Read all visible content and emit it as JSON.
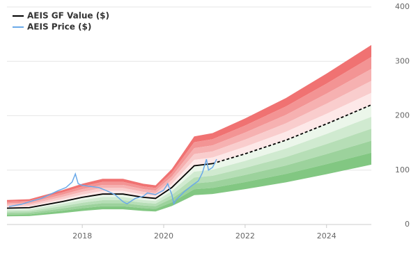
{
  "chart_data": {
    "type": "gf-value",
    "xlim": [
      2016.15,
      2025.1
    ],
    "xticks": [
      2018,
      2020,
      2022,
      2024
    ],
    "ylim": [
      0,
      400
    ],
    "yticks": [
      0,
      100,
      200,
      300,
      400
    ],
    "grid": true,
    "band_edges": [
      1.5,
      1.4,
      1.3,
      1.2,
      1.1,
      1.0,
      0.9,
      0.8,
      0.7,
      0.6,
      0.5
    ],
    "band_colors": [
      "#f07272",
      "#f39494",
      "#f6b1b1",
      "#f9cdcd",
      "#fde8e8",
      "#ebf6ea",
      "#d0ead0",
      "#b6deb6",
      "#9cd29c",
      "#82c782"
    ],
    "dashed_from": 10,
    "series": [
      {
        "name": "AEIS GF Value ($)",
        "color": "#000000",
        "x": [
          2016.15,
          2016.7,
          2017.5,
          2018.0,
          2018.5,
          2019.0,
          2019.5,
          2019.8,
          2020.2,
          2020.75,
          2021.2,
          2022.0,
          2023.0,
          2024.0,
          2025.1
        ],
        "values": [
          30,
          31,
          42,
          50,
          56,
          56,
          50,
          48,
          68,
          108,
          112,
          130,
          155,
          185,
          220
        ]
      },
      {
        "name": "AEIS Price ($)",
        "color": "#6aa9e9",
        "x": [
          2016.2,
          2016.5,
          2016.8,
          2017.0,
          2017.2,
          2017.4,
          2017.6,
          2017.75,
          2017.83,
          2017.9,
          2018.0,
          2018.2,
          2018.4,
          2018.6,
          2018.8,
          2019.0,
          2019.1,
          2019.3,
          2019.5,
          2019.6,
          2019.8,
          2020.0,
          2020.1,
          2020.2,
          2020.25,
          2020.3,
          2020.5,
          2020.7,
          2020.85,
          2020.95,
          2021.05,
          2021.1,
          2021.2,
          2021.3
        ],
        "values": [
          33,
          37,
          44,
          48,
          55,
          62,
          68,
          78,
          93,
          75,
          72,
          70,
          68,
          62,
          55,
          42,
          38,
          48,
          52,
          58,
          55,
          63,
          75,
          55,
          38,
          45,
          60,
          72,
          80,
          95,
          120,
          100,
          105,
          120
        ]
      }
    ]
  }
}
